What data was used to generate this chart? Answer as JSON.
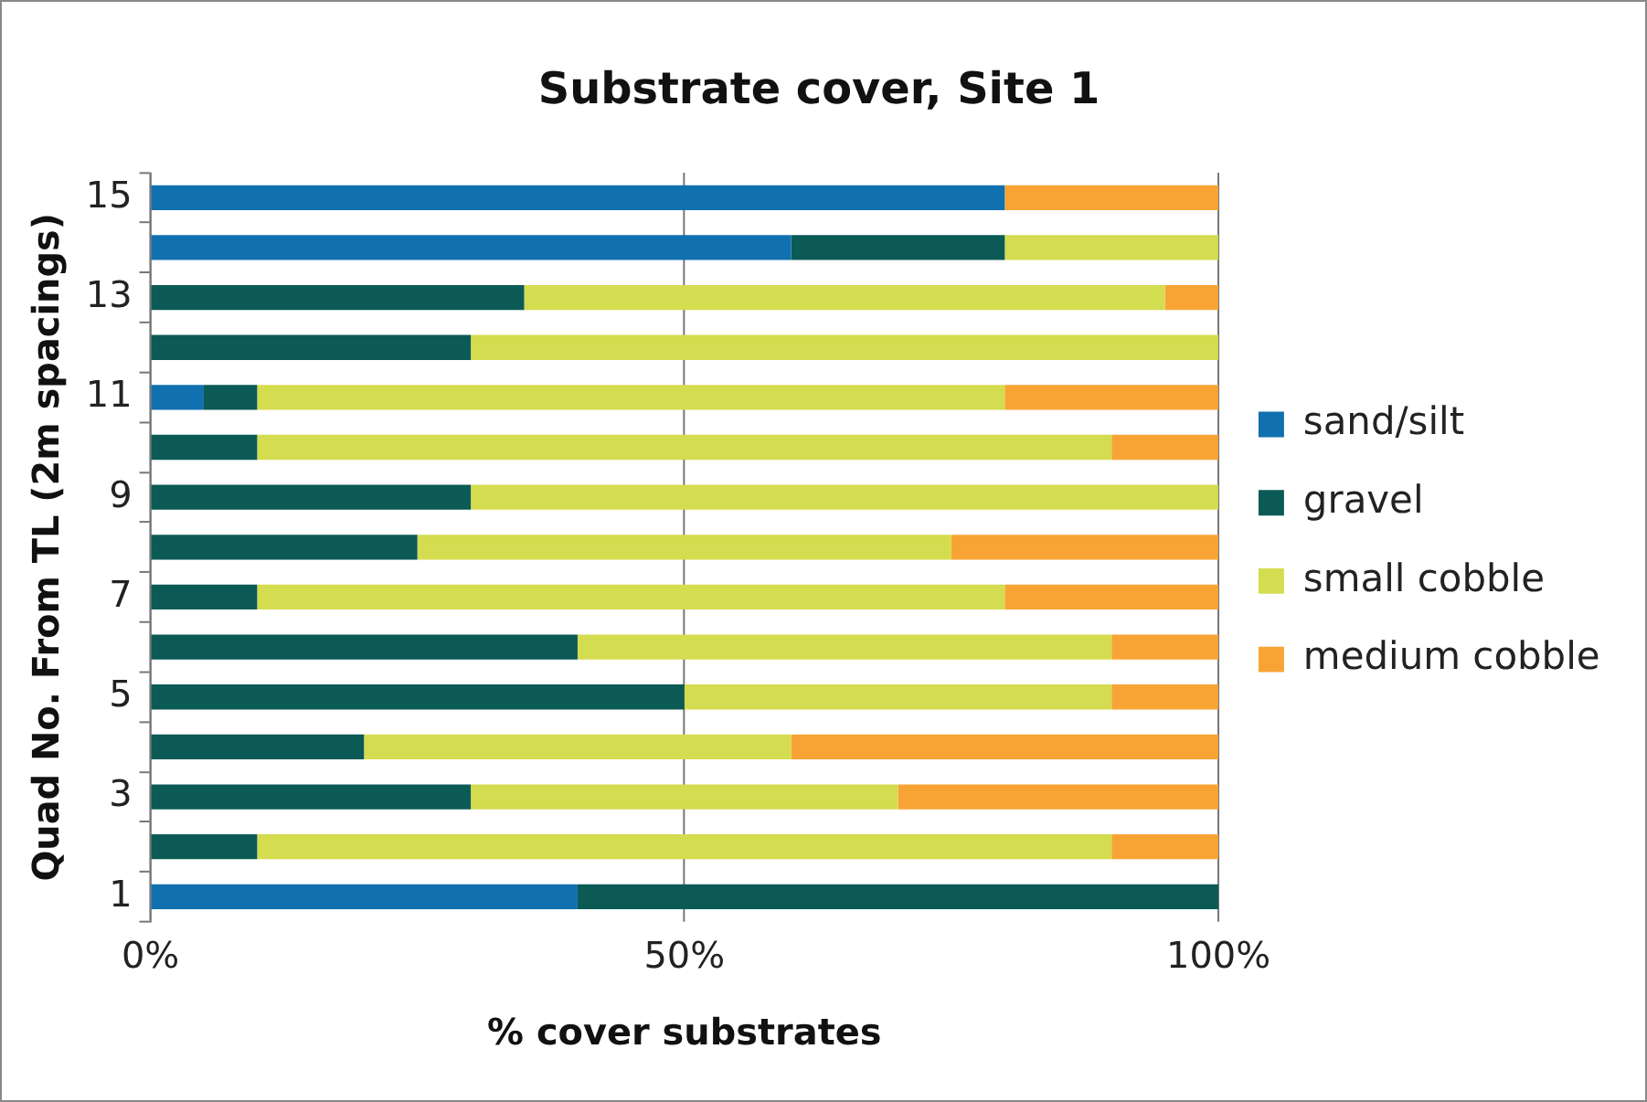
{
  "chart_data": {
    "type": "bar",
    "orientation": "horizontal",
    "stacked": true,
    "title": "Substrate cover, Site 1",
    "xlabel": "% cover substrates",
    "ylabel": "Quad No. From TL (2m spacings)",
    "categories": [
      "15",
      null,
      "13",
      null,
      "11",
      null,
      "9",
      null,
      "7",
      null,
      "5",
      null,
      "3",
      null,
      "1"
    ],
    "series": [
      {
        "name": "sand/silt",
        "color": "#1170b0",
        "values": [
          80,
          60,
          0,
          0,
          5,
          0,
          0,
          0,
          0,
          0,
          0,
          0,
          0,
          0,
          40
        ]
      },
      {
        "name": "gravel",
        "color": "#0b5a55",
        "values": [
          0,
          20,
          35,
          30,
          5,
          10,
          30,
          25,
          10,
          40,
          50,
          20,
          30,
          10,
          60
        ]
      },
      {
        "name": "small cobble",
        "color": "#d4dc50",
        "values": [
          0,
          20,
          60,
          70,
          70,
          80,
          70,
          50,
          70,
          50,
          40,
          40,
          40,
          80,
          0
        ]
      },
      {
        "name": "medium cobble",
        "color": "#f8a434",
        "values": [
          20,
          0,
          5,
          0,
          20,
          10,
          0,
          25,
          20,
          10,
          10,
          40,
          30,
          10,
          0
        ]
      }
    ],
    "xlim": [
      0,
      100
    ],
    "xticks": [
      {
        "value": 0,
        "label": "0%"
      },
      {
        "value": 50,
        "label": "50%"
      },
      {
        "value": 100,
        "label": "100%"
      }
    ],
    "grid": "x",
    "legend": "right"
  }
}
